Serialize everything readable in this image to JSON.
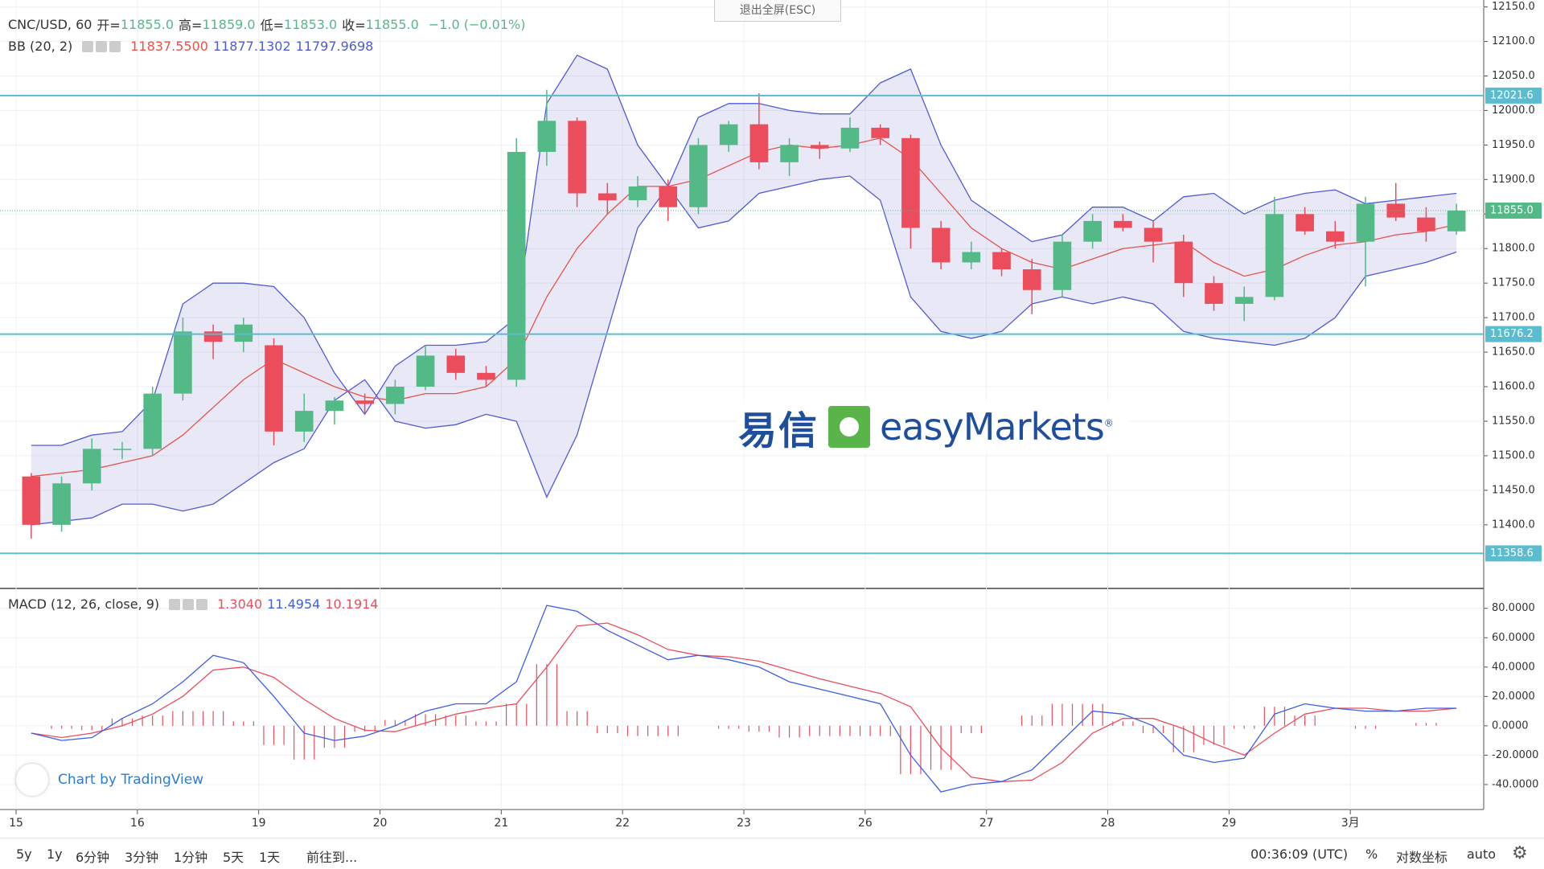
{
  "exit_fullscreen": "退出全屏(ESC)",
  "chart_data": [
    {
      "type": "candlestick",
      "title": "CNC/USD, 60",
      "header": {
        "open_label": "开=",
        "open": "11855.0",
        "high_label": "高=",
        "high": "11859.0",
        "low_label": "低=",
        "low": "11853.0",
        "close_label": "收=",
        "close": "11855.0",
        "change": "−1.0 (−0.01%)"
      },
      "categories": [
        "15",
        null,
        null,
        null,
        "16",
        null,
        null,
        null,
        "19",
        null,
        null,
        null,
        "20",
        null,
        null,
        null,
        "21",
        null,
        null,
        null,
        "22",
        null,
        null,
        null,
        "23",
        null,
        null,
        null,
        "26",
        null,
        null,
        null,
        "27",
        null,
        null,
        null,
        "28",
        null,
        null,
        null,
        "29",
        null,
        null,
        null,
        "3月",
        null,
        null,
        null
      ],
      "open": [
        11470,
        11400,
        11460,
        11510,
        11510,
        11590,
        11680,
        11665,
        11660,
        11535,
        11565,
        11580,
        11575,
        11600,
        11645,
        11620,
        11610,
        11940,
        11985,
        11880,
        11870,
        11890,
        11860,
        11950,
        11980,
        11925,
        11950,
        11945,
        11975,
        11960,
        11830,
        11780,
        11795,
        11770,
        11740,
        11810,
        11840,
        11830,
        11810,
        11750,
        11720,
        11730,
        11850,
        11825,
        11810,
        11865,
        11845,
        11825
      ],
      "high": [
        11475,
        11470,
        11525,
        11520,
        11600,
        11700,
        11690,
        11700,
        11670,
        11590,
        11585,
        11590,
        11610,
        11660,
        11655,
        11630,
        11960,
        12030,
        11990,
        11895,
        11905,
        11900,
        11960,
        11985,
        12025,
        11960,
        11955,
        11990,
        11980,
        11965,
        11840,
        11810,
        11800,
        11785,
        11820,
        11850,
        11850,
        11840,
        11820,
        11760,
        11745,
        11875,
        11860,
        11840,
        11875,
        11895,
        11860,
        11865
      ],
      "low": [
        11380,
        11390,
        11450,
        11495,
        11500,
        11580,
        11640,
        11650,
        11515,
        11520,
        11545,
        11560,
        11560,
        11595,
        11610,
        11600,
        11600,
        11920,
        11860,
        11850,
        11860,
        11840,
        11850,
        11940,
        11915,
        11905,
        11930,
        11940,
        11950,
        11800,
        11770,
        11770,
        11760,
        11705,
        11730,
        11800,
        11825,
        11780,
        11730,
        11710,
        11695,
        11725,
        11820,
        11800,
        11745,
        11840,
        11810,
        11820
      ],
      "close": [
        11400,
        11460,
        11510,
        11510,
        11590,
        11680,
        11665,
        11690,
        11535,
        11565,
        11580,
        11575,
        11600,
        11645,
        11620,
        11610,
        11940,
        11985,
        11880,
        11870,
        11890,
        11860,
        11950,
        11980,
        11925,
        11950,
        11945,
        11975,
        11960,
        11830,
        11780,
        11795,
        11770,
        11740,
        11810,
        11840,
        11830,
        11810,
        11750,
        11720,
        11730,
        11850,
        11825,
        11810,
        11865,
        11845,
        11825,
        11855
      ],
      "colors": {
        "up": "#53b987",
        "down": "#eb4d5c"
      },
      "ylim": [
        11309,
        12160
      ],
      "yticks": [
        {
          "value": 11400,
          "label": "11400.0"
        },
        {
          "value": 11450,
          "label": "11450.0"
        },
        {
          "value": 11500,
          "label": "11500.0"
        },
        {
          "value": 11550,
          "label": "11550.0"
        },
        {
          "value": 11600,
          "label": "11600.0"
        },
        {
          "value": 11650,
          "label": "11650.0"
        },
        {
          "value": 11700,
          "label": "11700.0"
        },
        {
          "value": 11750,
          "label": "11750.0"
        },
        {
          "value": 11800,
          "label": "11800.0"
        },
        {
          "value": 11850,
          "label": "11850.0"
        },
        {
          "value": 11900,
          "label": "11900.0"
        },
        {
          "value": 11950,
          "label": "11950.0"
        },
        {
          "value": 12000,
          "label": "12000.0"
        },
        {
          "value": 12050,
          "label": "12050.0"
        },
        {
          "value": 12100,
          "label": "12100.0"
        },
        {
          "value": 12150,
          "label": "12150.0"
        }
      ],
      "grid": true,
      "levels": [
        12021.6,
        11676.2,
        11358.6
      ],
      "level_color": "#5bbcd0",
      "last_price": {
        "value": 11855,
        "label": "11855.0"
      },
      "bb": {
        "label": "BB (20, 2)",
        "fill": "rgba(110,110,200,0.16)",
        "basis": {
          "color": "#e5534b",
          "last": "11837.5500",
          "values": [
            11470,
            11475,
            11480,
            11490,
            11500,
            11530,
            11570,
            11610,
            11640,
            11620,
            11600,
            11585,
            11580,
            11590,
            11590,
            11600,
            11640,
            11730,
            11800,
            11850,
            11890,
            11890,
            11900,
            11920,
            11940,
            11950,
            11945,
            11950,
            11960,
            11930,
            11880,
            11830,
            11800,
            11780,
            11770,
            11785,
            11800,
            11805,
            11810,
            11780,
            11760,
            11770,
            11790,
            11805,
            11810,
            11820,
            11825,
            11835
          ]
        },
        "upper": {
          "color": "#4f5bd5",
          "last": "11877.1302",
          "values": [
            11515,
            11515,
            11530,
            11535,
            11580,
            11720,
            11750,
            11750,
            11745,
            11700,
            11620,
            11560,
            11630,
            11660,
            11660,
            11665,
            11700,
            12010,
            12080,
            12060,
            11950,
            11890,
            11990,
            12010,
            12010,
            12000,
            11995,
            11995,
            12040,
            12060,
            11950,
            11870,
            11840,
            11810,
            11820,
            11860,
            11860,
            11840,
            11875,
            11880,
            11850,
            11870,
            11880,
            11885,
            11865,
            11870,
            11875,
            11880
          ]
        },
        "lower": {
          "color": "#4f5bd5",
          "last": "11797.9698",
          "values": [
            11400,
            11405,
            11410,
            11430,
            11430,
            11420,
            11430,
            11460,
            11490,
            11510,
            11580,
            11610,
            11550,
            11540,
            11545,
            11560,
            11550,
            11440,
            11530,
            11680,
            11830,
            11890,
            11830,
            11840,
            11880,
            11890,
            11900,
            11905,
            11870,
            11730,
            11680,
            11670,
            11680,
            11720,
            11730,
            11720,
            11730,
            11720,
            11680,
            11670,
            11665,
            11660,
            11670,
            11700,
            11760,
            11770,
            11780,
            11795
          ]
        }
      }
    },
    {
      "type": "macd",
      "title": "MACD (12, 26, close, 9)",
      "ylim": [
        -57,
        93
      ],
      "yticks": [
        {
          "value": -40,
          "label": "-40.0000"
        },
        {
          "value": -20,
          "label": "-20.0000"
        },
        {
          "value": 0,
          "label": "0.0000"
        },
        {
          "value": 20,
          "label": "20.0000"
        },
        {
          "value": 40,
          "label": "40.0000"
        },
        {
          "value": 60,
          "label": "60.0000"
        },
        {
          "value": 80,
          "label": "80.0000"
        }
      ],
      "histogram": {
        "color": "#eb4d5c",
        "last": "1.3040",
        "values": [
          0,
          -2,
          -3,
          5,
          7,
          10,
          10,
          3,
          -13,
          -23,
          -15,
          -4,
          4,
          8,
          7,
          3,
          15,
          42,
          10,
          -5,
          -7,
          -7,
          0,
          -2,
          -4,
          -8,
          -7,
          -7,
          -7,
          -33,
          -30,
          -5,
          0,
          7,
          15,
          15,
          3,
          -5,
          -18,
          -13,
          -2,
          13,
          7,
          0,
          -2,
          0,
          2,
          0
        ]
      },
      "macd": {
        "color": "#3c5ee8",
        "last": "11.4954",
        "values": [
          -5,
          -10,
          -8,
          5,
          15,
          30,
          48,
          43,
          20,
          -5,
          -10,
          -7,
          0,
          10,
          15,
          15,
          30,
          82,
          78,
          65,
          55,
          45,
          48,
          45,
          40,
          30,
          25,
          20,
          15,
          -20,
          -45,
          -40,
          -38,
          -30,
          -10,
          10,
          8,
          0,
          -20,
          -25,
          -22,
          8,
          15,
          12,
          10,
          10,
          12,
          12
        ]
      },
      "signal": {
        "color": "#eb4d5c",
        "last": "10.1914",
        "values": [
          -5,
          -8,
          -5,
          0,
          8,
          20,
          38,
          40,
          33,
          18,
          5,
          -3,
          -4,
          2,
          8,
          12,
          15,
          40,
          68,
          70,
          62,
          52,
          48,
          47,
          44,
          38,
          32,
          27,
          22,
          13,
          -15,
          -35,
          -38,
          -37,
          -25,
          -5,
          5,
          5,
          -2,
          -12,
          -20,
          -5,
          8,
          12,
          12,
          10,
          10,
          12
        ]
      }
    }
  ],
  "logo": {
    "cn": "易信",
    "en": "easyMarkets",
    "reg": "®"
  },
  "attribution": "Chart by TradingView",
  "bottom_toolbar": {
    "ranges": [
      "5y",
      "1y",
      "6分钟",
      "3分钟",
      "1分钟",
      "5天",
      "1天"
    ],
    "goto": "前往到...",
    "time": "00:36:09 (UTC)",
    "percent": "%",
    "log": "对数坐标",
    "auto": "auto"
  }
}
